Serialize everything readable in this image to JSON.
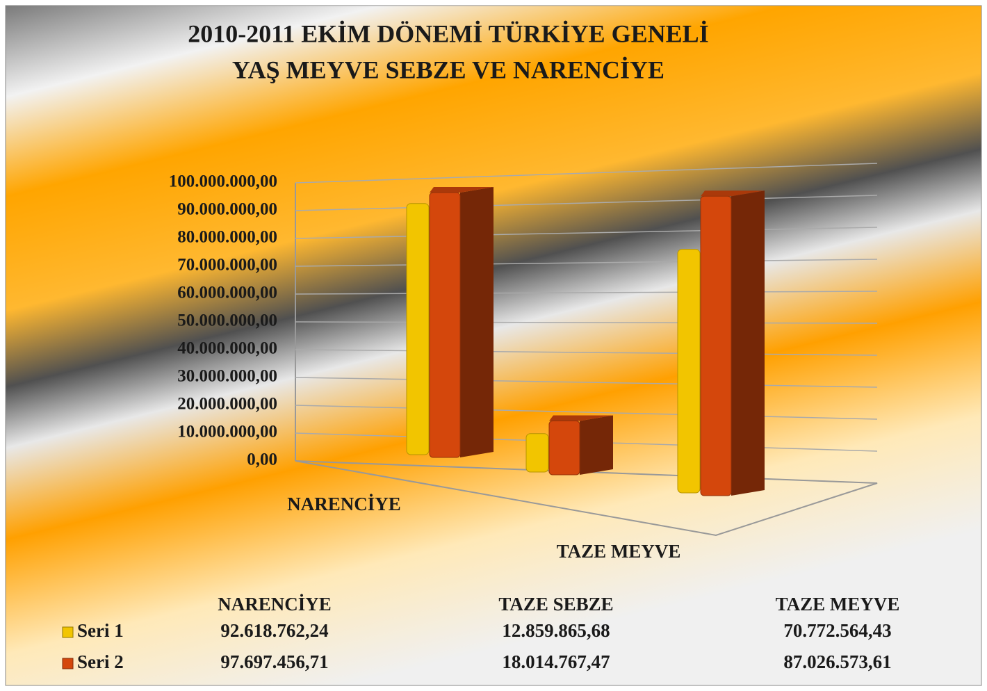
{
  "chart_data": {
    "type": "bar3d",
    "title": [
      "2010-2011 EKİM DÖNEMİ TÜRKİYE GENELİ",
      "YAŞ MEYVE SEBZE VE NARENCİYE"
    ],
    "categories": [
      "NARENCİYE",
      "TAZE SEBZE",
      "TAZE MEYVE"
    ],
    "series": [
      {
        "name": "Seri 1",
        "color": "#f2c500",
        "values": [
          92618762.24,
          12859865.68,
          70772564.43
        ],
        "value_labels": [
          "92.618.762,24",
          "12.859.865,68",
          "70.772.564,43"
        ]
      },
      {
        "name": "Seri 2",
        "color": "#d4470c",
        "values": [
          97697456.71,
          18014767.47,
          87026573.61
        ],
        "value_labels": [
          "97.697.456,71",
          "18.014.767,47",
          "87.026.573,61"
        ]
      }
    ],
    "ylim": [
      0,
      100000000
    ],
    "yticks": [
      {
        "value": 0,
        "label": "0,00"
      },
      {
        "value": 10000000,
        "label": "10.000.000,00"
      },
      {
        "value": 20000000,
        "label": "20.000.000,00"
      },
      {
        "value": 30000000,
        "label": "30.000.000,00"
      },
      {
        "value": 40000000,
        "label": "40.000.000,00"
      },
      {
        "value": 50000000,
        "label": "50.000.000,00"
      },
      {
        "value": 60000000,
        "label": "60.000.000,00"
      },
      {
        "value": 70000000,
        "label": "70.000.000,00"
      },
      {
        "value": 80000000,
        "label": "80.000.000,00"
      },
      {
        "value": 90000000,
        "label": "90.000.000,00"
      },
      {
        "value": 100000000,
        "label": "100.000.000,00"
      }
    ],
    "grid": true
  }
}
